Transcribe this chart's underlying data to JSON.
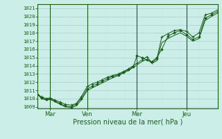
{
  "xlabel": "Pression niveau de la mer( hPa )",
  "bg_color": "#cceee8",
  "grid_major_color": "#aacccc",
  "grid_minor_color": "#c8e8e4",
  "line_color": "#1a5c1a",
  "ylim": [
    1008.8,
    1021.5
  ],
  "yticks": [
    1009,
    1010,
    1011,
    1012,
    1013,
    1014,
    1015,
    1016,
    1017,
    1018,
    1019,
    1020,
    1021
  ],
  "xlim": [
    0,
    14.5
  ],
  "xtick_positions": [
    1.0,
    4.0,
    8.0,
    12.0
  ],
  "xtick_labels": [
    "Mar",
    "Ven",
    "Mer",
    "Jeu"
  ],
  "vlines": [
    1.0,
    4.0,
    8.0,
    12.0
  ],
  "series1_x": [
    0.0,
    0.3,
    0.7,
    1.0,
    1.4,
    1.8,
    2.2,
    2.7,
    3.1,
    3.5,
    4.0,
    4.4,
    4.8,
    5.2,
    5.6,
    6.0,
    6.5,
    6.9,
    7.3,
    7.7,
    8.0,
    8.4,
    8.8,
    9.2,
    9.6,
    10.0,
    10.5,
    11.0,
    11.5,
    12.0,
    12.5,
    13.0,
    13.5,
    14.0,
    14.5
  ],
  "series1_y": [
    1010.5,
    1010.2,
    1010.0,
    1010.1,
    1009.8,
    1009.6,
    1009.3,
    1009.2,
    1009.4,
    1010.2,
    1011.5,
    1011.8,
    1012.0,
    1012.3,
    1012.6,
    1012.8,
    1013.0,
    1013.3,
    1013.6,
    1014.0,
    1014.3,
    1014.7,
    1015.1,
    1014.4,
    1014.8,
    1017.5,
    1017.9,
    1018.3,
    1018.4,
    1018.2,
    1017.5,
    1018.0,
    1020.2,
    1020.4,
    1020.8
  ],
  "series2_x": [
    0.0,
    0.3,
    0.7,
    1.0,
    1.4,
    1.8,
    2.2,
    2.7,
    3.1,
    3.5,
    4.0,
    4.4,
    4.8,
    5.2,
    5.6,
    6.0,
    6.5,
    6.9,
    7.3,
    7.7,
    8.0,
    8.4,
    8.8,
    9.2,
    9.6,
    10.0,
    10.5,
    11.0,
    11.5,
    12.0,
    12.5,
    13.0,
    13.5,
    14.0,
    14.5
  ],
  "series2_y": [
    1010.5,
    1010.1,
    1009.9,
    1010.0,
    1009.7,
    1009.4,
    1009.1,
    1009.0,
    1009.3,
    1010.0,
    1011.2,
    1011.5,
    1011.8,
    1012.1,
    1012.4,
    1012.7,
    1012.9,
    1013.2,
    1013.5,
    1013.9,
    1015.2,
    1015.0,
    1014.7,
    1014.5,
    1015.0,
    1016.0,
    1017.6,
    1018.0,
    1018.3,
    1017.8,
    1017.2,
    1017.5,
    1019.8,
    1020.2,
    1020.6
  ],
  "series3_x": [
    0.0,
    0.3,
    0.7,
    1.0,
    1.4,
    1.8,
    2.2,
    2.7,
    3.1,
    3.5,
    4.0,
    4.4,
    4.8,
    5.2,
    5.6,
    6.0,
    6.5,
    6.9,
    7.3,
    7.7,
    8.0,
    8.4,
    8.8,
    9.2,
    9.6,
    10.0,
    10.5,
    11.0,
    11.5,
    12.0,
    12.5,
    13.0,
    13.5,
    14.0,
    14.5
  ],
  "series3_y": [
    1010.5,
    1010.0,
    1009.8,
    1009.9,
    1009.6,
    1009.3,
    1009.0,
    1008.9,
    1009.1,
    1009.8,
    1011.0,
    1011.3,
    1011.6,
    1011.9,
    1012.2,
    1012.5,
    1012.8,
    1013.1,
    1013.4,
    1013.8,
    1014.1,
    1014.5,
    1014.8,
    1014.3,
    1014.6,
    1016.8,
    1017.3,
    1017.7,
    1018.0,
    1017.6,
    1017.0,
    1017.3,
    1019.5,
    1020.0,
    1020.4
  ]
}
